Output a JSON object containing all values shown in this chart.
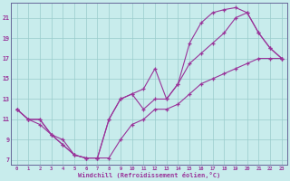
{
  "xlabel": "Windchill (Refroidissement éolien,°C)",
  "bg_color": "#c8ecec",
  "line_color": "#993399",
  "grid_color": "#99cccc",
  "xlim_min": -0.5,
  "xlim_max": 23.5,
  "ylim_min": 6.5,
  "ylim_max": 22.5,
  "xticks": [
    0,
    1,
    2,
    3,
    4,
    5,
    6,
    7,
    8,
    9,
    10,
    11,
    12,
    13,
    14,
    15,
    16,
    17,
    18,
    19,
    20,
    21,
    22,
    23
  ],
  "yticks": [
    7,
    9,
    11,
    13,
    15,
    17,
    19,
    21
  ],
  "line1_x": [
    0,
    1,
    2,
    3,
    4,
    5,
    6,
    7,
    8,
    9,
    10,
    11,
    12,
    13,
    14,
    15,
    16,
    17,
    18,
    19,
    20,
    21,
    22,
    23
  ],
  "line1_y": [
    12,
    11,
    10.5,
    9.5,
    8.5,
    7.5,
    7.2,
    7.2,
    11,
    13,
    13.5,
    14,
    16,
    13,
    14.5,
    18.5,
    20.5,
    21.5,
    21.8,
    22,
    21.5,
    19.5,
    18,
    17
  ],
  "line2_x": [
    0,
    1,
    2,
    3,
    4,
    5,
    6,
    7,
    8,
    9,
    10,
    11,
    12,
    13,
    14,
    15,
    16,
    17,
    18,
    19,
    20,
    21,
    22,
    23
  ],
  "line2_y": [
    12,
    11,
    11,
    9.5,
    9,
    7.5,
    7.2,
    7.2,
    11,
    13,
    13.5,
    12,
    13,
    13,
    14.5,
    16.5,
    17.5,
    18.5,
    19.5,
    21,
    21.5,
    19.5,
    18,
    17
  ],
  "line3_x": [
    0,
    1,
    2,
    3,
    4,
    5,
    6,
    7,
    8,
    9,
    10,
    11,
    12,
    13,
    14,
    15,
    16,
    17,
    18,
    19,
    20,
    21,
    22,
    23
  ],
  "line3_y": [
    12,
    11,
    11,
    9.5,
    8.5,
    7.5,
    7.2,
    7.2,
    7.2,
    9,
    10.5,
    11,
    12,
    12,
    12.5,
    13.5,
    14.5,
    15,
    15.5,
    16,
    16.5,
    17,
    17,
    17
  ]
}
